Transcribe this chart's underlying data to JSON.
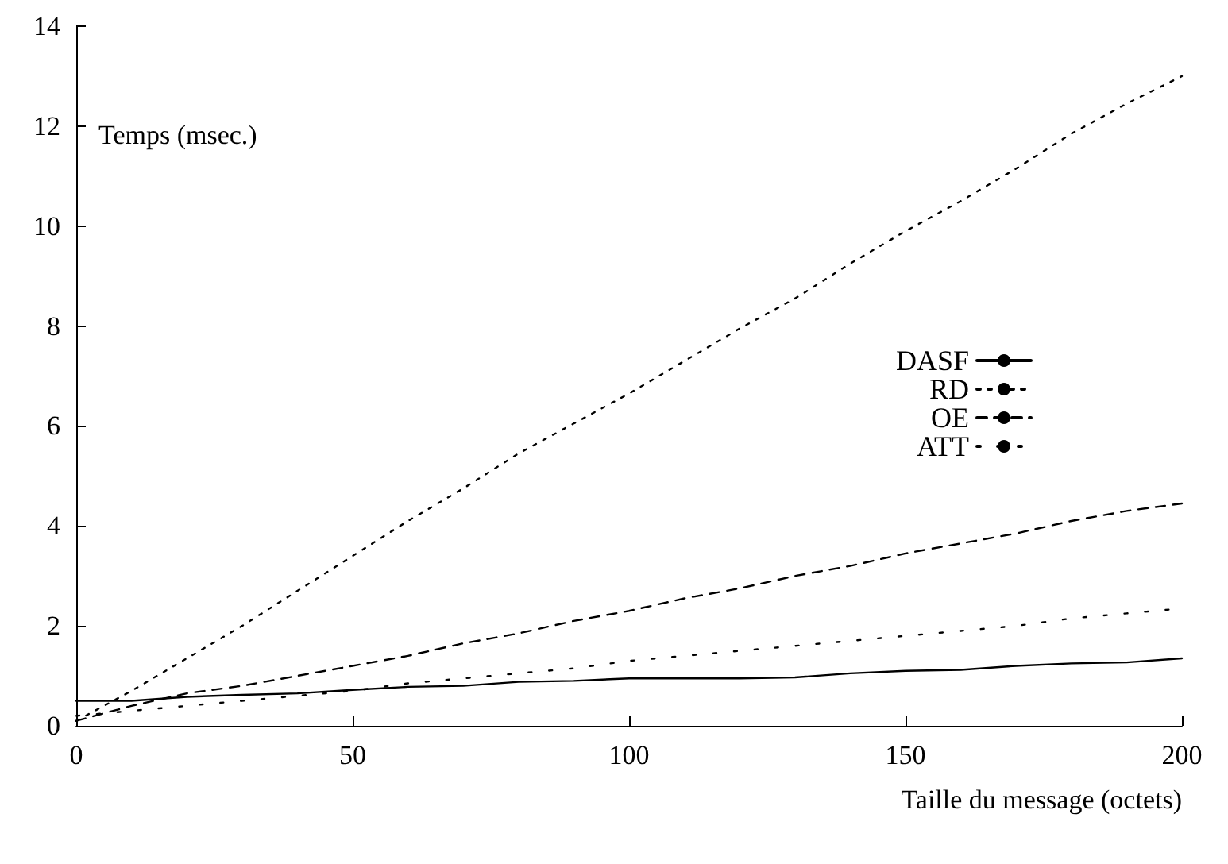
{
  "chart_data": {
    "type": "line",
    "xlabel": "Taille du message (octets)",
    "ylabel": "Temps (msec.)",
    "x": [
      0,
      10,
      20,
      30,
      40,
      50,
      60,
      70,
      80,
      90,
      100,
      110,
      120,
      130,
      140,
      150,
      160,
      170,
      180,
      190,
      200
    ],
    "series": [
      {
        "name": "DASF",
        "color": "#000000",
        "line_style": "solid",
        "values": [
          0.5,
          0.5,
          0.58,
          0.62,
          0.65,
          0.72,
          0.78,
          0.8,
          0.88,
          0.9,
          0.95,
          0.95,
          0.95,
          0.97,
          1.05,
          1.1,
          1.12,
          1.2,
          1.25,
          1.27,
          1.35
        ]
      },
      {
        "name": "RD",
        "color": "#000000",
        "line_style": "dotted",
        "values": [
          0.1,
          0.7,
          1.35,
          2.0,
          2.7,
          3.4,
          4.1,
          4.75,
          5.45,
          6.05,
          6.65,
          7.3,
          7.95,
          8.55,
          9.25,
          9.9,
          10.5,
          11.15,
          11.85,
          12.45,
          13.0
        ]
      },
      {
        "name": "OE",
        "color": "#000000",
        "line_style": "dashed",
        "values": [
          0.1,
          0.4,
          0.65,
          0.8,
          1.0,
          1.2,
          1.4,
          1.65,
          1.85,
          2.1,
          2.3,
          2.55,
          2.75,
          3.0,
          3.2,
          3.45,
          3.65,
          3.85,
          4.1,
          4.3,
          4.45
        ]
      },
      {
        "name": "ATT",
        "color": "#000000",
        "line_style": "dotted",
        "values": [
          0.2,
          0.3,
          0.4,
          0.5,
          0.6,
          0.7,
          0.85,
          0.95,
          1.05,
          1.15,
          1.3,
          1.4,
          1.5,
          1.6,
          1.7,
          1.8,
          1.9,
          2.0,
          2.15,
          2.25,
          2.35
        ]
      }
    ],
    "xlim": [
      0,
      200
    ],
    "xticks": [
      0,
      50,
      100,
      150,
      200
    ],
    "ylim": [
      0,
      14
    ],
    "yticks": [
      0,
      2,
      4,
      6,
      8,
      10,
      12,
      14
    ],
    "grid": false,
    "legend": "right",
    "marker": "none"
  }
}
